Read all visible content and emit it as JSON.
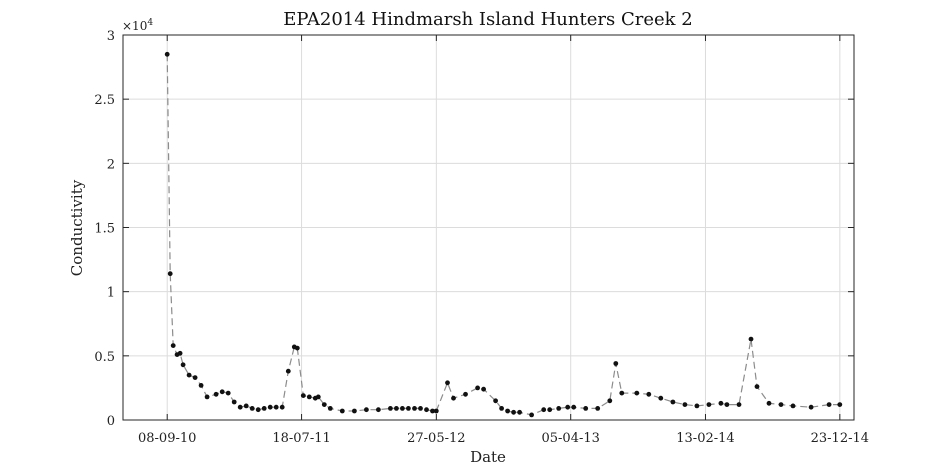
{
  "chart_data": {
    "type": "line",
    "title": "EPA2014 Hindmarsh Island Hunters Creek 2",
    "xlabel": "Date",
    "ylabel": "Conductivity",
    "y_exponent_label": "×10",
    "y_exponent_power": "4",
    "y_multiplier": 10000,
    "ylim": [
      0,
      3
    ],
    "yticks": [
      0,
      0.5,
      1,
      1.5,
      2,
      2.5,
      3
    ],
    "ytick_labels": [
      "0",
      "0.5",
      "1",
      "1.5",
      "2",
      "2.5",
      "3"
    ],
    "xlim": [
      "2010-05-28",
      "2015-01-25"
    ],
    "xticks": [
      "2010-09-08",
      "2011-07-18",
      "2012-05-27",
      "2013-04-05",
      "2014-02-13",
      "2014-12-23"
    ],
    "xtick_labels": [
      "08-09-10",
      "18-07-11",
      "27-05-12",
      "05-04-13",
      "13-02-14",
      "23-12-14"
    ],
    "grid": true,
    "series": [
      {
        "x": [
          "2010-09-08",
          "2010-09-15",
          "2010-09-22",
          "2010-10-01",
          "2010-10-08",
          "2010-10-15",
          "2010-10-29",
          "2010-11-12",
          "2010-11-26",
          "2010-12-10",
          "2010-12-31",
          "2011-01-14",
          "2011-01-28",
          "2011-02-11",
          "2011-02-25",
          "2011-03-11",
          "2011-03-25",
          "2011-04-08",
          "2011-04-22",
          "2011-05-06",
          "2011-05-20",
          "2011-06-03",
          "2011-06-17",
          "2011-07-01",
          "2011-07-08",
          "2011-07-22",
          "2011-08-05",
          "2011-08-19",
          "2011-08-26",
          "2011-09-09",
          "2011-09-23",
          "2011-10-21",
          "2011-11-18",
          "2011-12-16",
          "2012-01-13",
          "2012-02-10",
          "2012-02-24",
          "2012-03-09",
          "2012-03-23",
          "2012-04-06",
          "2012-04-20",
          "2012-05-04",
          "2012-05-18",
          "2012-05-27",
          "2012-06-22",
          "2012-07-06",
          "2012-08-03",
          "2012-08-31",
          "2012-09-14",
          "2012-10-12",
          "2012-10-26",
          "2012-11-09",
          "2012-11-23",
          "2012-12-07",
          "2013-01-04",
          "2013-02-01",
          "2013-02-15",
          "2013-03-08",
          "2013-03-29",
          "2013-04-12",
          "2013-05-10",
          "2013-06-07",
          "2013-07-05",
          "2013-07-19",
          "2013-08-02",
          "2013-09-06",
          "2013-10-04",
          "2013-11-01",
          "2013-11-29",
          "2013-12-27",
          "2014-01-24",
          "2014-02-21",
          "2014-03-21",
          "2014-04-04",
          "2014-05-02",
          "2014-05-30",
          "2014-06-13",
          "2014-07-11",
          "2014-08-08",
          "2014-09-05",
          "2014-10-17",
          "2014-11-28",
          "2014-12-23"
        ],
        "values": [
          2.85,
          1.14,
          0.58,
          0.51,
          0.52,
          0.43,
          0.35,
          0.33,
          0.27,
          0.18,
          0.2,
          0.22,
          0.21,
          0.14,
          0.1,
          0.11,
          0.09,
          0.08,
          0.09,
          0.1,
          0.1,
          0.1,
          0.38,
          0.57,
          0.56,
          0.19,
          0.18,
          0.17,
          0.18,
          0.12,
          0.09,
          0.07,
          0.07,
          0.08,
          0.08,
          0.09,
          0.09,
          0.09,
          0.09,
          0.09,
          0.09,
          0.08,
          0.07,
          0.07,
          0.29,
          0.17,
          0.2,
          0.25,
          0.24,
          0.15,
          0.09,
          0.07,
          0.06,
          0.06,
          0.04,
          0.08,
          0.08,
          0.09,
          0.1,
          0.1,
          0.09,
          0.09,
          0.15,
          0.44,
          0.21,
          0.21,
          0.2,
          0.17,
          0.14,
          0.12,
          0.11,
          0.12,
          0.13,
          0.12,
          0.12,
          0.63,
          0.26,
          0.13,
          0.12,
          0.11,
          0.1,
          0.12,
          0.12
        ]
      }
    ]
  }
}
